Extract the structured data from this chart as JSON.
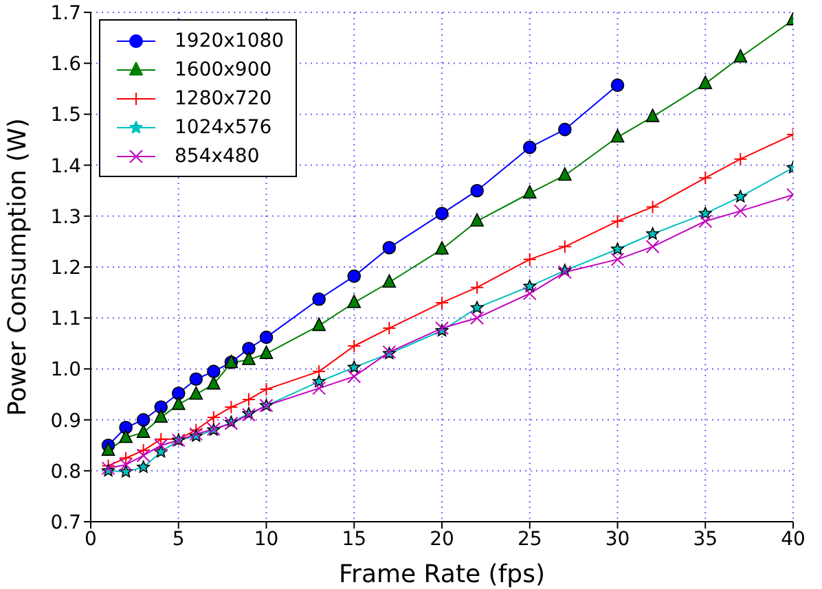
{
  "chart_data": {
    "type": "line",
    "xlabel": "Frame Rate (fps)",
    "ylabel": "Power Consumption (W)",
    "xlim": [
      0,
      40
    ],
    "xticks": [
      0,
      5,
      10,
      15,
      20,
      25,
      30,
      35,
      40
    ],
    "ylim": [
      0.7,
      1.7
    ],
    "yticks": [
      0.7,
      0.8,
      0.9,
      {
        "value": 1,
        "label": "1.0"
      },
      1.1,
      1.2,
      1.3,
      1.4,
      1.5,
      1.6,
      1.7
    ],
    "grid": true,
    "legend": "top left",
    "series": [
      {
        "name": "1920x1080",
        "color": "#0000ff",
        "marker": "circle",
        "x": [
          1,
          2,
          3,
          4,
          5,
          6,
          7,
          8,
          9,
          10,
          13,
          15,
          17,
          20,
          22,
          25,
          27,
          30
        ],
        "values": [
          0.85,
          0.885,
          0.9,
          0.925,
          0.952,
          0.98,
          0.995,
          1.013,
          1.04,
          1.062,
          1.137,
          1.182,
          1.238,
          1.305,
          1.35,
          1.435,
          1.47,
          1.557
        ]
      },
      {
        "name": "1600x900",
        "color": "#008000",
        "marker": "triangle",
        "x": [
          1,
          2,
          3,
          4,
          5,
          6,
          7,
          8,
          9,
          10,
          13,
          15,
          17,
          20,
          22,
          25,
          27,
          30,
          32,
          35,
          37,
          40
        ],
        "values": [
          0.84,
          0.865,
          0.875,
          0.905,
          0.93,
          0.95,
          0.97,
          1.012,
          1.018,
          1.03,
          1.085,
          1.13,
          1.17,
          1.235,
          1.29,
          1.345,
          1.38,
          1.455,
          1.495,
          1.56,
          1.612,
          1.685
        ]
      },
      {
        "name": "1280x720",
        "color": "#ff0000",
        "marker": "plus",
        "x": [
          1,
          2,
          3,
          4,
          5,
          6,
          7,
          8,
          9,
          10,
          13,
          15,
          17,
          20,
          22,
          25,
          27,
          30,
          32,
          35,
          37,
          40
        ],
        "values": [
          0.81,
          0.825,
          0.84,
          0.862,
          0.862,
          0.88,
          0.905,
          0.925,
          0.94,
          0.96,
          0.995,
          1.045,
          1.08,
          1.13,
          1.16,
          1.215,
          1.24,
          1.29,
          1.318,
          1.375,
          1.412,
          1.46
        ]
      },
      {
        "name": "1024x576",
        "color": "#00bfbf",
        "marker": "star",
        "x": [
          1,
          2,
          3,
          4,
          5,
          6,
          7,
          8,
          9,
          10,
          13,
          15,
          17,
          20,
          22,
          25,
          27,
          30,
          32,
          35,
          37,
          40
        ],
        "values": [
          0.8,
          0.798,
          0.807,
          0.837,
          0.86,
          0.868,
          0.88,
          0.895,
          0.912,
          0.928,
          0.975,
          1.003,
          1.03,
          1.075,
          1.12,
          1.162,
          1.193,
          1.235,
          1.265,
          1.305,
          1.338,
          1.395
        ]
      },
      {
        "name": "854x480",
        "color": "#bf00bf",
        "marker": "cross",
        "x": [
          1,
          2,
          3,
          4,
          5,
          6,
          7,
          8,
          9,
          10,
          13,
          15,
          17,
          20,
          22,
          25,
          27,
          30,
          32,
          35,
          37,
          40
        ],
        "values": [
          0.805,
          0.812,
          0.83,
          0.85,
          0.86,
          0.872,
          0.882,
          0.893,
          0.91,
          0.928,
          0.962,
          0.985,
          1.033,
          1.08,
          1.1,
          1.148,
          1.19,
          1.215,
          1.24,
          1.29,
          1.31,
          1.342
        ]
      }
    ]
  }
}
